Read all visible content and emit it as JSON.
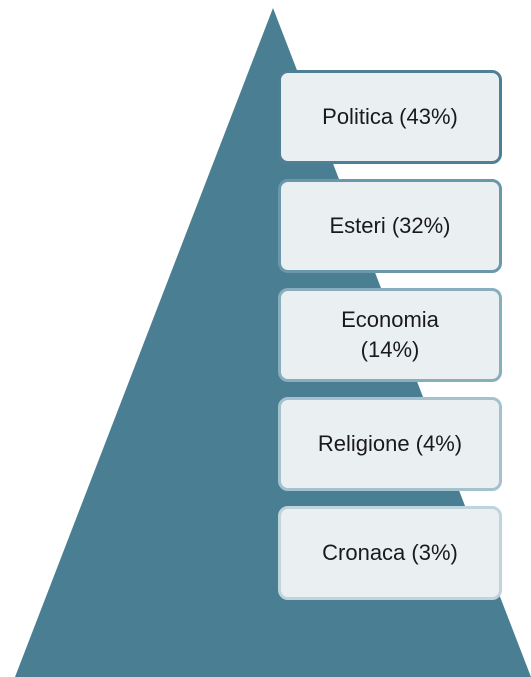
{
  "items": [
    {
      "label": "Politica (43%)"
    },
    {
      "label": "Esteri (32%)"
    },
    {
      "label": "Economia (14%)"
    },
    {
      "label": "Religione (4%)"
    },
    {
      "label": "Cronaca (3%)"
    }
  ]
}
